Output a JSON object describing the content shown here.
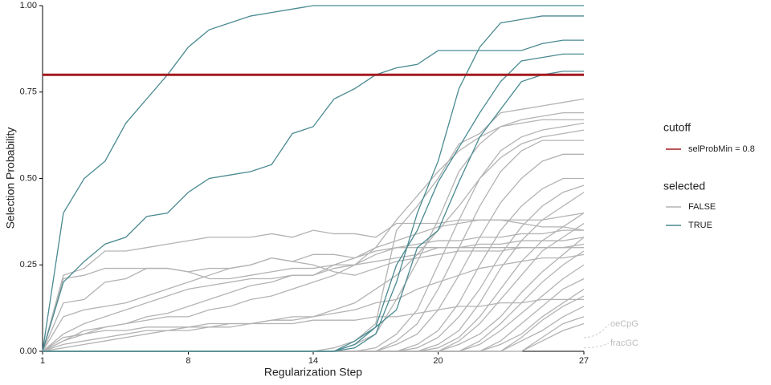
{
  "chart_data": {
    "type": "line",
    "xlabel": "Regularization Step",
    "ylabel": "Selection Probability",
    "x": [
      1,
      2,
      3,
      4,
      5,
      6,
      7,
      8,
      9,
      10,
      11,
      12,
      13,
      14,
      15,
      16,
      17,
      18,
      19,
      20,
      21,
      22,
      23,
      24,
      25,
      26,
      27
    ],
    "xlim": [
      1,
      27
    ],
    "xticks": [
      1,
      8,
      14,
      20,
      27
    ],
    "ylim": [
      0,
      1
    ],
    "yticks": [
      {
        "value": 0,
        "label": "0.00"
      },
      {
        "value": 0.25,
        "label": "0.25"
      },
      {
        "value": 0.5,
        "label": "0.50"
      },
      {
        "value": 0.75,
        "label": "0.75"
      },
      {
        "value": 1,
        "label": "1.00"
      }
    ],
    "cutoff": {
      "title": "cutoff",
      "name": "selProbMin = 0.8",
      "value": 0.8,
      "color": "#a31a20"
    },
    "legend_title": "selected",
    "groups": [
      {
        "name": "FALSE",
        "color": "#b3b3b3",
        "lines": [
          [
            0,
            0.22,
            0.24,
            0.29,
            0.29,
            0.3,
            0.31,
            0.32,
            0.33,
            0.33,
            0.33,
            0.34,
            0.33,
            0.35,
            0.34,
            0.34,
            0.33,
            0.37,
            0.37,
            0.37,
            0.38,
            0.38,
            0.38,
            0.37,
            0.36,
            0.36,
            0.35
          ],
          [
            0,
            0.21,
            0.22,
            0.24,
            0.24,
            0.24,
            0.24,
            0.23,
            0.24,
            0.24,
            0.25,
            0.27,
            0.26,
            0.28,
            0.28,
            0.27,
            0.29,
            0.3,
            0.3,
            0.3,
            0.3,
            0.31,
            0.31,
            0.32,
            0.32,
            0.32,
            0.33
          ],
          [
            0,
            0.14,
            0.15,
            0.2,
            0.21,
            0.24,
            0.24,
            0.23,
            0.21,
            0.21,
            0.22,
            0.23,
            0.24,
            0.24,
            0.25,
            0.25,
            0.26,
            0.27,
            0.28,
            0.3,
            0.3,
            0.3,
            0.3,
            0.3,
            0.3,
            0.3,
            0.3
          ],
          [
            0,
            0.1,
            0.12,
            0.13,
            0.14,
            0.16,
            0.18,
            0.2,
            0.22,
            0.24,
            0.25,
            0.27,
            0.26,
            0.25,
            0.23,
            0.22,
            0.24,
            0.26,
            0.27,
            0.28,
            0.29,
            0.29,
            0.29,
            0.3,
            0.3,
            0.3,
            0.31
          ],
          [
            0,
            0.05,
            0.08,
            0.1,
            0.12,
            0.14,
            0.16,
            0.18,
            0.19,
            0.2,
            0.21,
            0.21,
            0.22,
            0.22,
            0.24,
            0.25,
            0.28,
            0.3,
            0.31,
            0.32,
            0.32,
            0.33,
            0.33,
            0.34,
            0.34,
            0.35,
            0.35
          ],
          [
            0,
            0.03,
            0.05,
            0.07,
            0.08,
            0.1,
            0.11,
            0.13,
            0.15,
            0.17,
            0.19,
            0.2,
            0.22,
            0.22,
            0.25,
            0.27,
            0.3,
            0.32,
            0.34,
            0.36,
            0.37,
            0.38,
            0.38,
            0.38,
            0.38,
            0.39,
            0.4
          ],
          [
            0,
            0,
            0,
            0,
            0,
            0,
            0,
            0,
            0,
            0,
            0,
            0,
            0,
            0,
            0.01,
            0.03,
            0.08,
            0.35,
            0.42,
            0.5,
            0.6,
            0.63,
            0.69,
            0.7,
            0.71,
            0.72,
            0.73
          ],
          [
            0,
            0,
            0,
            0,
            0,
            0,
            0,
            0,
            0,
            0,
            0,
            0,
            0,
            0,
            0,
            0.02,
            0.05,
            0.15,
            0.26,
            0.38,
            0.52,
            0.6,
            0.65,
            0.67,
            0.68,
            0.69,
            0.69
          ],
          [
            0,
            0,
            0,
            0,
            0,
            0,
            0,
            0,
            0,
            0,
            0,
            0,
            0,
            0,
            0,
            0,
            0.01,
            0.05,
            0.12,
            0.25,
            0.38,
            0.5,
            0.58,
            0.62,
            0.64,
            0.65,
            0.66
          ],
          [
            0,
            0,
            0,
            0,
            0,
            0,
            0,
            0,
            0,
            0,
            0,
            0,
            0,
            0,
            0,
            0,
            0,
            0.03,
            0.08,
            0.18,
            0.3,
            0.42,
            0.52,
            0.58,
            0.61,
            0.61,
            0.61
          ],
          [
            0,
            0,
            0,
            0,
            0,
            0,
            0,
            0,
            0,
            0,
            0,
            0,
            0,
            0,
            0,
            0,
            0,
            0.02,
            0.05,
            0.12,
            0.22,
            0.33,
            0.43,
            0.5,
            0.55,
            0.57,
            0.57
          ],
          [
            0,
            0,
            0,
            0,
            0,
            0,
            0,
            0,
            0,
            0,
            0,
            0,
            0,
            0,
            0,
            0,
            0,
            0,
            0.02,
            0.06,
            0.14,
            0.25,
            0.35,
            0.42,
            0.47,
            0.5,
            0.5
          ],
          [
            0,
            0,
            0,
            0,
            0,
            0,
            0,
            0,
            0,
            0,
            0,
            0,
            0,
            0,
            0,
            0,
            0,
            0,
            0.01,
            0.04,
            0.1,
            0.18,
            0.28,
            0.36,
            0.42,
            0.46,
            0.48
          ],
          [
            0,
            0,
            0,
            0,
            0,
            0,
            0,
            0,
            0,
            0,
            0,
            0,
            0,
            0,
            0,
            0,
            0,
            0,
            0,
            0.02,
            0.06,
            0.14,
            0.24,
            0.32,
            0.38,
            0.42,
            0.46
          ],
          [
            0,
            0,
            0,
            0,
            0,
            0,
            0,
            0,
            0,
            0,
            0,
            0,
            0,
            0,
            0,
            0,
            0,
            0,
            0,
            0.01,
            0.04,
            0.1,
            0.18,
            0.26,
            0.32,
            0.36,
            0.4
          ],
          [
            0,
            0,
            0,
            0,
            0,
            0,
            0,
            0,
            0,
            0,
            0,
            0,
            0,
            0,
            0,
            0,
            0,
            0,
            0,
            0,
            0.03,
            0.08,
            0.15,
            0.22,
            0.29,
            0.33,
            0.37
          ],
          [
            0,
            0,
            0,
            0,
            0,
            0,
            0,
            0,
            0,
            0,
            0,
            0,
            0,
            0,
            0,
            0,
            0,
            0,
            0,
            0,
            0.02,
            0.05,
            0.1,
            0.17,
            0.23,
            0.28,
            0.33
          ],
          [
            0,
            0,
            0,
            0,
            0,
            0,
            0,
            0,
            0,
            0,
            0,
            0,
            0,
            0,
            0,
            0,
            0,
            0,
            0,
            0,
            0,
            0.03,
            0.08,
            0.14,
            0.2,
            0.25,
            0.29
          ],
          [
            0,
            0,
            0,
            0,
            0,
            0,
            0,
            0,
            0,
            0,
            0,
            0,
            0,
            0,
            0,
            0,
            0,
            0,
            0,
            0,
            0,
            0.02,
            0.06,
            0.11,
            0.16,
            0.21,
            0.25
          ],
          [
            0,
            0,
            0,
            0,
            0,
            0,
            0,
            0,
            0,
            0,
            0,
            0,
            0,
            0,
            0,
            0,
            0,
            0,
            0,
            0,
            0,
            0,
            0.03,
            0.08,
            0.13,
            0.18,
            0.21
          ],
          [
            0,
            0,
            0,
            0,
            0,
            0,
            0,
            0,
            0,
            0,
            0,
            0,
            0,
            0,
            0,
            0,
            0,
            0,
            0,
            0,
            0,
            0,
            0.02,
            0.05,
            0.1,
            0.14,
            0.18
          ],
          [
            0,
            0,
            0,
            0,
            0,
            0,
            0,
            0,
            0,
            0,
            0,
            0,
            0,
            0,
            0,
            0,
            0,
            0,
            0,
            0,
            0,
            0,
            0,
            0.04,
            0.09,
            0.13,
            0.16
          ],
          [
            0,
            0,
            0,
            0,
            0,
            0,
            0,
            0,
            0,
            0,
            0,
            0,
            0,
            0,
            0,
            0,
            0,
            0,
            0,
            0,
            0,
            0,
            0,
            0.03,
            0.06,
            0.1,
            0.13
          ],
          [
            0,
            0,
            0,
            0,
            0,
            0,
            0,
            0,
            0,
            0,
            0,
            0,
            0,
            0,
            0,
            0,
            0,
            0,
            0,
            0,
            0,
            0,
            0,
            0,
            0.04,
            0.08,
            0.1
          ],
          [
            0,
            0,
            0,
            0,
            0,
            0,
            0,
            0,
            0,
            0,
            0,
            0,
            0,
            0,
            0,
            0,
            0,
            0,
            0,
            0,
            0,
            0,
            0,
            0,
            0.03,
            0.06,
            0.08
          ],
          [
            0,
            0.02,
            0.03,
            0.04,
            0.05,
            0.06,
            0.06,
            0.07,
            0.07,
            0.08,
            0.08,
            0.09,
            0.1,
            0.1,
            0.11,
            0.12,
            0.14,
            0.15,
            0.18,
            0.2,
            0.22,
            0.24,
            0.25,
            0.26,
            0.27,
            0.27,
            0.28
          ],
          [
            0,
            0.01,
            0.02,
            0.03,
            0.04,
            0.05,
            0.06,
            0.06,
            0.07,
            0.07,
            0.08,
            0.08,
            0.08,
            0.09,
            0.09,
            0.09,
            0.1,
            0.1,
            0.11,
            0.12,
            0.13,
            0.13,
            0.14,
            0.14,
            0.15,
            0.15,
            0.15
          ],
          [
            0,
            0.04,
            0.05,
            0.06,
            0.06,
            0.07,
            0.07,
            0.07,
            0.08,
            0.08,
            0.08,
            0.09,
            0.09,
            0.1,
            0.12,
            0.14,
            0.18,
            0.22,
            0.28,
            0.35,
            0.42,
            0.5,
            0.56,
            0.6,
            0.62,
            0.63,
            0.64
          ],
          [
            0,
            0.03,
            0.06,
            0.07,
            0.08,
            0.09,
            0.1,
            0.1,
            0.12,
            0.13,
            0.15,
            0.16,
            0.18,
            0.2,
            0.22,
            0.25,
            0.3,
            0.38,
            0.45,
            0.52,
            0.58,
            0.62,
            0.65,
            0.66,
            0.67,
            0.67,
            0.67
          ]
        ]
      },
      {
        "name": "TRUE",
        "color": "#4a8a91",
        "lines": [
          [
            0,
            0.4,
            0.5,
            0.55,
            0.66,
            0.73,
            0.8,
            0.88,
            0.93,
            0.95,
            0.97,
            0.98,
            0.99,
            1,
            1,
            1,
            1,
            1,
            1,
            1,
            1,
            1,
            1,
            1,
            1,
            1,
            1
          ],
          [
            0,
            0.2,
            0.26,
            0.31,
            0.33,
            0.39,
            0.4,
            0.46,
            0.5,
            0.51,
            0.52,
            0.54,
            0.63,
            0.65,
            0.73,
            0.76,
            0.8,
            0.82,
            0.83,
            0.87,
            0.87,
            0.87,
            0.87,
            0.87,
            0.89,
            0.9,
            0.9
          ],
          [
            0,
            0,
            0,
            0,
            0,
            0,
            0,
            0,
            0,
            0,
            0,
            0,
            0,
            0,
            0,
            0.01,
            0.05,
            0.2,
            0.4,
            0.55,
            0.76,
            0.88,
            0.95,
            0.96,
            0.97,
            0.97,
            0.97
          ],
          [
            0,
            0,
            0,
            0,
            0,
            0,
            0,
            0,
            0,
            0,
            0,
            0,
            0,
            0,
            0,
            0.02,
            0.07,
            0.25,
            0.35,
            0.49,
            0.59,
            0.69,
            0.78,
            0.84,
            0.85,
            0.86,
            0.86
          ],
          [
            0,
            0,
            0,
            0,
            0,
            0,
            0,
            0,
            0,
            0,
            0,
            0,
            0,
            0,
            0,
            0.03,
            0.07,
            0.12,
            0.3,
            0.35,
            0.49,
            0.62,
            0.7,
            0.78,
            0.8,
            0.81,
            0.81
          ]
        ]
      }
    ],
    "annotations": [
      "oeCpG",
      "fracGC"
    ]
  }
}
